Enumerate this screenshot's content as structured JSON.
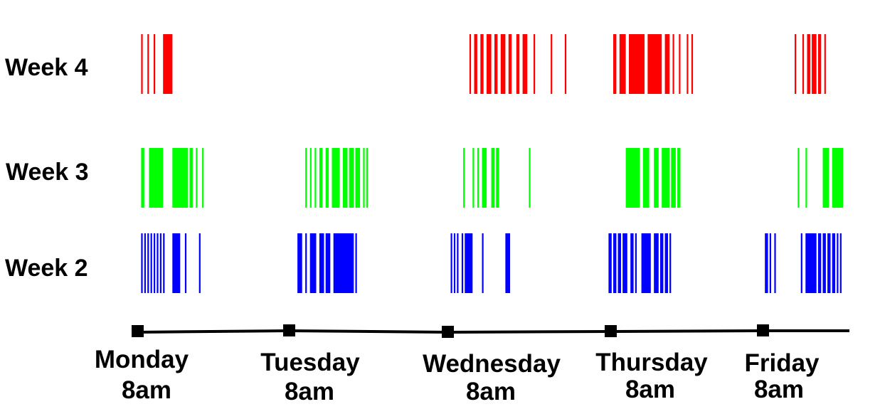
{
  "chart_data": {
    "type": "event-raster",
    "title": "",
    "xlabel": "",
    "ylabel": "",
    "colors": {
      "week4": "#ff0000",
      "week3": "#00ff00",
      "week2": "#0000ff",
      "axis": "#000000"
    },
    "axis_ticks": [
      {
        "day": "Monday",
        "time": "8am"
      },
      {
        "day": "Tuesday",
        "time": "8am"
      },
      {
        "day": "Wednesday",
        "time": "8am"
      },
      {
        "day": "Thursday",
        "time": "8am"
      },
      {
        "day": "Friday",
        "time": "8am"
      }
    ],
    "series": [
      {
        "name": "Week 4",
        "color": "#ff0000",
        "events": [
          {
            "start": 0.02,
            "end": 0.03
          },
          {
            "start": 0.06,
            "end": 0.07
          },
          {
            "start": 0.1,
            "end": 0.11
          },
          {
            "start": 0.16,
            "end": 0.22
          },
          {
            "start": 2.12,
            "end": 2.13
          },
          {
            "start": 2.15,
            "end": 2.17
          },
          {
            "start": 2.19,
            "end": 2.21
          },
          {
            "start": 2.23,
            "end": 2.26
          },
          {
            "start": 2.28,
            "end": 2.3
          },
          {
            "start": 2.32,
            "end": 2.35
          },
          {
            "start": 2.37,
            "end": 2.39
          },
          {
            "start": 2.42,
            "end": 2.44
          },
          {
            "start": 2.46,
            "end": 2.49
          },
          {
            "start": 2.53,
            "end": 2.54
          },
          {
            "start": 2.64,
            "end": 2.65
          },
          {
            "start": 2.73,
            "end": 2.74
          },
          {
            "start": 3.04,
            "end": 3.06
          },
          {
            "start": 3.08,
            "end": 3.12
          },
          {
            "start": 3.14,
            "end": 3.24
          },
          {
            "start": 3.26,
            "end": 3.35
          },
          {
            "start": 3.37,
            "end": 3.4
          },
          {
            "start": 3.42,
            "end": 3.43
          },
          {
            "start": 3.46,
            "end": 3.47
          },
          {
            "start": 3.51,
            "end": 3.52
          },
          {
            "start": 3.54,
            "end": 3.55
          },
          {
            "start": 4.2,
            "end": 4.21
          },
          {
            "start": 4.25,
            "end": 4.26
          },
          {
            "start": 4.28,
            "end": 4.3
          },
          {
            "start": 4.31,
            "end": 4.34
          },
          {
            "start": 4.35,
            "end": 4.37
          },
          {
            "start": 4.39,
            "end": 4.4
          }
        ]
      },
      {
        "name": "Week 3",
        "color": "#00ff00",
        "events": [
          {
            "start": 0.02,
            "end": 0.04
          },
          {
            "start": 0.07,
            "end": 0.16
          },
          {
            "start": 0.22,
            "end": 0.32
          },
          {
            "start": 0.33,
            "end": 0.35
          },
          {
            "start": 0.37,
            "end": 0.38
          },
          {
            "start": 0.41,
            "end": 0.42
          },
          {
            "start": 1.07,
            "end": 1.08
          },
          {
            "start": 1.1,
            "end": 1.11
          },
          {
            "start": 1.13,
            "end": 1.14
          },
          {
            "start": 1.16,
            "end": 1.18
          },
          {
            "start": 1.2,
            "end": 1.22
          },
          {
            "start": 1.24,
            "end": 1.29
          },
          {
            "start": 1.31,
            "end": 1.34
          },
          {
            "start": 1.35,
            "end": 1.38
          },
          {
            "start": 1.39,
            "end": 1.42
          },
          {
            "start": 1.44,
            "end": 1.45
          },
          {
            "start": 1.46,
            "end": 1.47
          },
          {
            "start": 2.08,
            "end": 2.09
          },
          {
            "start": 2.14,
            "end": 2.15
          },
          {
            "start": 2.17,
            "end": 2.18
          },
          {
            "start": 2.2,
            "end": 2.23
          },
          {
            "start": 2.26,
            "end": 2.28
          },
          {
            "start": 2.29,
            "end": 2.31
          },
          {
            "start": 2.5,
            "end": 2.51
          },
          {
            "start": 3.12,
            "end": 3.21
          },
          {
            "start": 3.23,
            "end": 3.27
          },
          {
            "start": 3.3,
            "end": 3.33
          },
          {
            "start": 3.35,
            "end": 3.4
          },
          {
            "start": 3.41,
            "end": 3.44
          },
          {
            "start": 3.45,
            "end": 3.47
          },
          {
            "start": 4.22,
            "end": 4.23
          },
          {
            "start": 4.27,
            "end": 4.28
          },
          {
            "start": 4.38,
            "end": 4.42
          },
          {
            "start": 4.44,
            "end": 4.51
          }
        ]
      },
      {
        "name": "Week 2",
        "color": "#0000ff",
        "events": [
          {
            "start": 0.02,
            "end": 0.03
          },
          {
            "start": 0.04,
            "end": 0.05
          },
          {
            "start": 0.06,
            "end": 0.07
          },
          {
            "start": 0.08,
            "end": 0.09
          },
          {
            "start": 0.1,
            "end": 0.11
          },
          {
            "start": 0.12,
            "end": 0.13
          },
          {
            "start": 0.14,
            "end": 0.15
          },
          {
            "start": 0.16,
            "end": 0.17
          },
          {
            "start": 0.22,
            "end": 0.27
          },
          {
            "start": 0.3,
            "end": 0.31
          },
          {
            "start": 0.39,
            "end": 0.4
          },
          {
            "start": 1.02,
            "end": 1.05
          },
          {
            "start": 1.07,
            "end": 1.08
          },
          {
            "start": 1.1,
            "end": 1.14
          },
          {
            "start": 1.16,
            "end": 1.19
          },
          {
            "start": 1.2,
            "end": 1.23
          },
          {
            "start": 1.25,
            "end": 1.38
          },
          {
            "start": 1.39,
            "end": 1.4
          },
          {
            "start": 2.0,
            "end": 2.01
          },
          {
            "start": 2.02,
            "end": 2.03
          },
          {
            "start": 2.04,
            "end": 2.05
          },
          {
            "start": 2.07,
            "end": 2.08
          },
          {
            "start": 2.09,
            "end": 2.14
          },
          {
            "start": 2.2,
            "end": 2.21
          },
          {
            "start": 2.35,
            "end": 2.38
          },
          {
            "start": 3.01,
            "end": 3.03
          },
          {
            "start": 3.04,
            "end": 3.06
          },
          {
            "start": 3.07,
            "end": 3.09
          },
          {
            "start": 3.1,
            "end": 3.13
          },
          {
            "start": 3.15,
            "end": 3.17
          },
          {
            "start": 3.18,
            "end": 3.19
          },
          {
            "start": 3.22,
            "end": 3.28
          },
          {
            "start": 3.3,
            "end": 3.33
          },
          {
            "start": 3.34,
            "end": 3.36
          },
          {
            "start": 3.37,
            "end": 3.39
          },
          {
            "start": 3.4,
            "end": 3.41
          },
          {
            "start": 4.01,
            "end": 4.03
          },
          {
            "start": 4.04,
            "end": 4.05
          },
          {
            "start": 4.07,
            "end": 4.08
          },
          {
            "start": 4.24,
            "end": 4.25
          },
          {
            "start": 4.27,
            "end": 4.34
          },
          {
            "start": 4.35,
            "end": 4.37
          },
          {
            "start": 4.38,
            "end": 4.4
          },
          {
            "start": 4.41,
            "end": 4.43
          },
          {
            "start": 4.44,
            "end": 4.46
          },
          {
            "start": 4.47,
            "end": 4.48
          },
          {
            "start": 4.49,
            "end": 4.5
          }
        ]
      }
    ]
  }
}
